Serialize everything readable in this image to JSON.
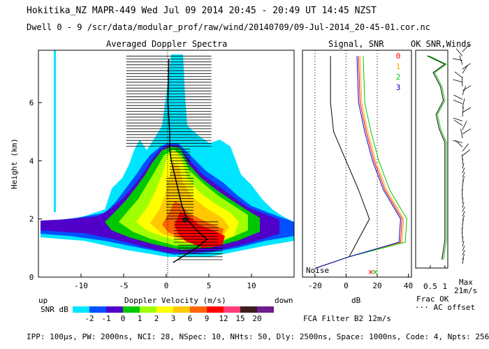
{
  "header": {
    "line1": "Hokitika_NZ  MAPR-449  Wed Jul 09 2014 20:45 - 20:49 UT 14:45 NZST",
    "line2": "Dwell  0 - 9   /scr/data/modular_prof/raw/wind/20140709/09-Jul-2014_20-45-01.cor.nc"
  },
  "footer": {
    "params": "IPP: 100µs,  PW: 2000ns,  NCI:  28,  NSpec: 10, NHts: 50,  Dly: 2500ns,  Space: 1000ns,  Code: 4,  Npts: 256",
    "filter": "FCA Filter B2 12m/s"
  },
  "colorbar": {
    "title": "SNR dB",
    "labels": [
      "-2",
      "-1",
      "0",
      "1",
      "2",
      "3",
      "6",
      "9",
      "12",
      "15",
      "20"
    ],
    "colors": [
      "#00e5ff",
      "#0050ff",
      "#5000c8",
      "#00c800",
      "#a0ff00",
      "#ffff00",
      "#ffc800",
      "#ff6400",
      "#ff0000",
      "#ff3c78",
      "#3c1e1e",
      "#6e1e8c"
    ]
  },
  "panel_labels": {
    "up": "up",
    "down": "down",
    "noise": "Noise",
    "frac_ok": "Frac OK",
    "ac_offset": "··· AC offset",
    "max": "Max",
    "max_speed": "21m/s"
  },
  "chart_data": [
    {
      "type": "heatmap",
      "title": "Averaged Doppler Spectra",
      "xlabel": "Doppler Velocity (m/s)",
      "ylabel": "Height (km)",
      "xlim": [
        -15,
        15
      ],
      "ylim": [
        0,
        7.8
      ],
      "xticks": [
        "-10",
        "-5",
        "0",
        "5",
        "10"
      ],
      "yticks": [
        "0",
        "2",
        "4",
        "6"
      ],
      "peak_velocity_profile": [
        {
          "h": 0.5,
          "v": 0.8
        },
        {
          "h": 1.0,
          "v": 3.5
        },
        {
          "h": 1.3,
          "v": 4.8
        },
        {
          "h": 1.6,
          "v": 3.6
        },
        {
          "h": 2.0,
          "v": 2.4
        },
        {
          "h": 2.5,
          "v": 1.8
        },
        {
          "h": 3.0,
          "v": 1.4
        },
        {
          "h": 3.5,
          "v": 1.0
        },
        {
          "h": 4.0,
          "v": 0.6
        },
        {
          "h": 4.4,
          "v": 0.4
        },
        {
          "h": 5.0,
          "v": 0.4
        },
        {
          "h": 6.0,
          "v": 0.2
        },
        {
          "h": 7.5,
          "v": 0.3
        }
      ]
    },
    {
      "type": "line",
      "title": "Signal, SNR",
      "xlabel": "dB",
      "xlim": [
        -28,
        42
      ],
      "ylim": [
        0,
        7.8
      ],
      "xticks": [
        "-20",
        "0",
        "20",
        "40"
      ],
      "series": [
        {
          "name": "Noise",
          "color": "#000000",
          "points": [
            {
              "h": 0.3,
              "v": -20
            },
            {
              "h": 0.7,
              "v": 2
            },
            {
              "h": 1.0,
              "v": 5
            },
            {
              "h": 2.0,
              "v": 15
            },
            {
              "h": 3.0,
              "v": 8
            },
            {
              "h": 4.0,
              "v": 0
            },
            {
              "h": 5.0,
              "v": -8
            },
            {
              "h": 6.0,
              "v": -10
            },
            {
              "h": 7.6,
              "v": -10
            }
          ]
        },
        {
          "name": "0",
          "color": "#ff0000",
          "points": [
            {
              "h": 0.3,
              "v": -20
            },
            {
              "h": 0.7,
              "v": 2
            },
            {
              "h": 1.2,
              "v": 35
            },
            {
              "h": 2.0,
              "v": 36
            },
            {
              "h": 3.0,
              "v": 25
            },
            {
              "h": 4.0,
              "v": 18
            },
            {
              "h": 5.0,
              "v": 13
            },
            {
              "h": 6.0,
              "v": 9
            },
            {
              "h": 7.6,
              "v": 8
            }
          ]
        },
        {
          "name": "1",
          "color": "#ffa000",
          "points": [
            {
              "h": 0.3,
              "v": -20
            },
            {
              "h": 0.7,
              "v": 2
            },
            {
              "h": 1.2,
              "v": 36
            },
            {
              "h": 2.0,
              "v": 37
            },
            {
              "h": 3.0,
              "v": 26
            },
            {
              "h": 4.0,
              "v": 19
            },
            {
              "h": 5.0,
              "v": 14
            },
            {
              "h": 6.0,
              "v": 10
            },
            {
              "h": 7.6,
              "v": 9
            }
          ]
        },
        {
          "name": "2",
          "color": "#00c800",
          "points": [
            {
              "h": 0.3,
              "v": -20
            },
            {
              "h": 0.7,
              "v": 2
            },
            {
              "h": 1.2,
              "v": 38
            },
            {
              "h": 2.0,
              "v": 39
            },
            {
              "h": 3.0,
              "v": 28
            },
            {
              "h": 4.0,
              "v": 21
            },
            {
              "h": 5.0,
              "v": 16
            },
            {
              "h": 6.0,
              "v": 12
            },
            {
              "h": 7.6,
              "v": 11
            }
          ]
        },
        {
          "name": "3",
          "color": "#0000c8",
          "points": [
            {
              "h": 0.3,
              "v": -20
            },
            {
              "h": 0.7,
              "v": 2
            },
            {
              "h": 1.2,
              "v": 34
            },
            {
              "h": 2.0,
              "v": 35
            },
            {
              "h": 3.0,
              "v": 24
            },
            {
              "h": 4.0,
              "v": 17
            },
            {
              "h": 5.0,
              "v": 12
            },
            {
              "h": 6.0,
              "v": 8
            },
            {
              "h": 7.6,
              "v": 7
            }
          ]
        }
      ]
    },
    {
      "type": "line",
      "title": "OK SNR,Winds",
      "xlim": [
        0.0,
        1.1
      ],
      "ylim": [
        0,
        7.8
      ],
      "xticks": [
        "0.5",
        "1"
      ],
      "series": [
        {
          "name": "frac_ok",
          "color": "#000000",
          "points": [
            {
              "h": 0.3,
              "v": 0.9
            },
            {
              "h": 1.0,
              "v": 1.0
            },
            {
              "h": 4.5,
              "v": 1.0
            },
            {
              "h": 5.0,
              "v": 0.8
            },
            {
              "h": 5.5,
              "v": 0.7
            },
            {
              "h": 6.0,
              "v": 0.95
            },
            {
              "h": 6.5,
              "v": 0.85
            },
            {
              "h": 7.0,
              "v": 0.6
            },
            {
              "h": 7.3,
              "v": 1.0
            },
            {
              "h": 7.6,
              "v": 0.4
            }
          ]
        }
      ]
    }
  ]
}
